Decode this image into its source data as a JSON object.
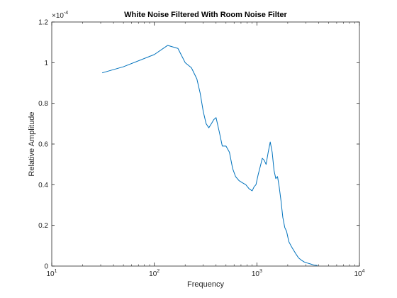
{
  "chart_data": {
    "type": "line",
    "title": "White Noise Filtered With Room Noise Filter",
    "xlabel": "Frequency",
    "ylabel": "Relative Amplitude",
    "x_scale": "log",
    "xlim": [
      10,
      10000
    ],
    "ylim": [
      0,
      1.2
    ],
    "y_multiplier_label": "×10",
    "y_multiplier_exponent": "-4",
    "x_ticks": [
      {
        "value": 10,
        "base": "10",
        "exp": "1"
      },
      {
        "value": 100,
        "base": "10",
        "exp": "2"
      },
      {
        "value": 1000,
        "base": "10",
        "exp": "3"
      },
      {
        "value": 10000,
        "base": "10",
        "exp": "4"
      }
    ],
    "y_ticks": [
      {
        "value": 0,
        "label": "0"
      },
      {
        "value": 0.2,
        "label": "0.2"
      },
      {
        "value": 0.4,
        "label": "0.4"
      },
      {
        "value": 0.6,
        "label": "0.6"
      },
      {
        "value": 0.8,
        "label": "0.8"
      },
      {
        "value": 1.0,
        "label": "1"
      },
      {
        "value": 1.2,
        "label": "1.2"
      }
    ],
    "grid": false,
    "line_color": "#0072BD",
    "series": [
      {
        "x": [
          31,
          50,
          100,
          135,
          170,
          200,
          230,
          260,
          280,
          300,
          320,
          340,
          360,
          380,
          400,
          430,
          460,
          500,
          540,
          580,
          620,
          670,
          720,
          780,
          840,
          900,
          940,
          980,
          1030,
          1080,
          1130,
          1180,
          1230,
          1290,
          1350,
          1410,
          1470,
          1530,
          1590,
          1650,
          1720,
          1790,
          1870,
          1950,
          2050,
          2150,
          2270,
          2400,
          2550,
          2700,
          2900,
          3100,
          3350,
          3600,
          3900
        ],
        "values": [
          0.95,
          0.98,
          1.04,
          1.085,
          1.07,
          1.0,
          0.975,
          0.92,
          0.85,
          0.76,
          0.7,
          0.68,
          0.7,
          0.72,
          0.73,
          0.66,
          0.59,
          0.59,
          0.56,
          0.48,
          0.44,
          0.42,
          0.41,
          0.4,
          0.38,
          0.37,
          0.39,
          0.4,
          0.45,
          0.49,
          0.53,
          0.52,
          0.5,
          0.56,
          0.61,
          0.56,
          0.47,
          0.43,
          0.44,
          0.39,
          0.32,
          0.24,
          0.19,
          0.17,
          0.12,
          0.1,
          0.08,
          0.06,
          0.04,
          0.03,
          0.02,
          0.015,
          0.01,
          0.005,
          0.003
        ]
      }
    ]
  }
}
